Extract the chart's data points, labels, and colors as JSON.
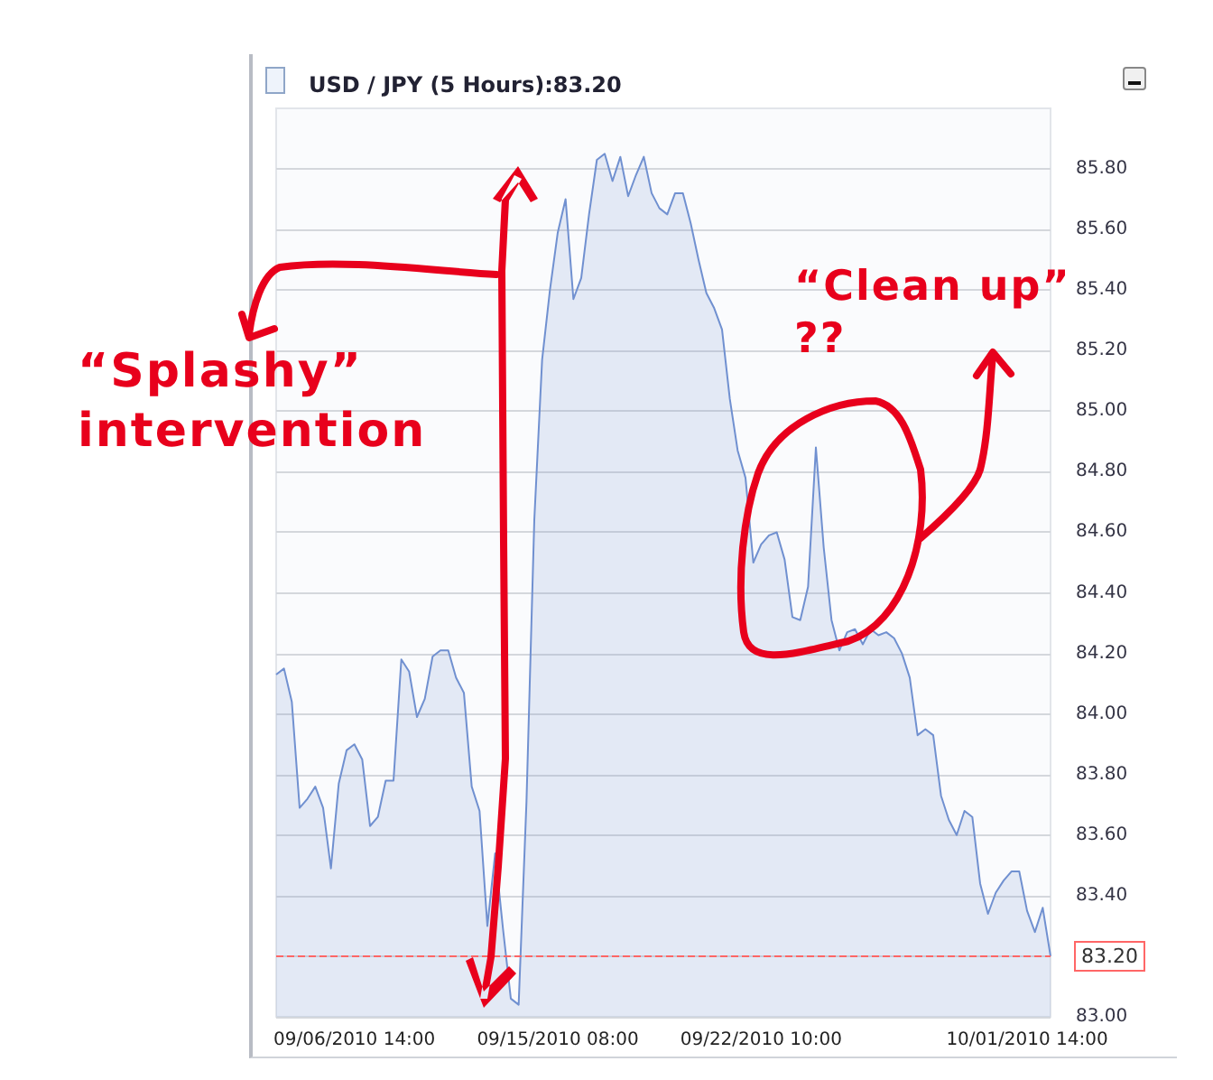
{
  "chart_data": {
    "type": "area",
    "title": "USD / JPY (5 Hours):83.20",
    "categories": [
      null,
      null,
      null,
      null,
      null,
      null,
      null,
      null,
      null,
      null,
      "09/06/2010 14:00",
      null,
      null,
      null,
      null,
      null,
      null,
      null,
      null,
      null,
      null,
      null,
      null,
      null,
      null,
      null,
      null,
      null,
      null,
      null,
      null,
      null,
      null,
      null,
      null,
      null,
      "09/15/2010 08:00",
      null,
      null,
      null,
      null,
      null,
      null,
      null,
      null,
      null,
      null,
      null,
      null,
      null,
      null,
      null,
      null,
      null,
      null,
      null,
      null,
      null,
      null,
      null,
      null,
      null,
      "09/22/2010 10:00",
      null,
      null,
      null,
      null,
      null,
      null,
      null,
      null,
      null,
      null,
      null,
      null,
      null,
      null,
      null,
      null,
      null,
      null,
      null,
      null,
      null,
      null,
      null,
      null,
      null,
      null,
      null,
      null,
      null,
      null,
      null,
      null,
      null,
      "10/01/2010 14:00",
      null,
      null,
      null
    ],
    "series": [
      {
        "color": "#7090d0",
        "values": [
          84.13,
          84.15,
          84.04,
          83.69,
          83.72,
          83.76,
          83.69,
          83.49,
          83.77,
          83.88,
          83.9,
          83.85,
          83.63,
          83.66,
          83.78,
          83.78,
          84.18,
          84.14,
          83.99,
          84.05,
          84.19,
          84.21,
          84.21,
          84.12,
          84.07,
          83.76,
          83.68,
          83.3,
          83.54,
          83.29,
          83.06,
          83.04,
          83.71,
          84.64,
          85.17,
          85.4,
          85.59,
          85.7,
          85.37,
          85.44,
          85.65,
          85.83,
          85.85,
          85.76,
          85.84,
          85.71,
          85.78,
          85.84,
          85.72,
          85.67,
          85.65,
          85.72,
          85.72,
          85.62,
          85.5,
          85.39,
          85.34,
          85.27,
          85.04,
          84.87,
          84.78,
          84.5,
          84.56,
          84.59,
          84.6,
          84.51,
          84.32,
          84.31,
          84.42,
          84.88,
          84.55,
          84.31,
          84.21,
          84.27,
          84.28,
          84.23,
          84.28,
          84.26,
          84.27,
          84.25,
          84.2,
          84.12,
          83.93,
          83.95,
          83.93,
          83.73,
          83.65,
          83.6,
          83.68,
          83.66,
          83.44,
          83.34,
          83.41,
          83.45,
          83.48,
          83.48,
          83.35,
          83.28,
          83.36,
          83.2
        ]
      }
    ],
    "ylim": [
      83,
      86
    ],
    "yticks": [
      {
        "value": 83,
        "label": "83.00"
      },
      {
        "value": 83.2,
        "label": null
      },
      {
        "value": 83.4,
        "label": "83.40"
      },
      {
        "value": 83.6,
        "label": "83.60"
      },
      {
        "value": 83.8,
        "label": "83.80"
      },
      {
        "value": 84,
        "label": "84.00"
      },
      {
        "value": 84.2,
        "label": "84.20"
      },
      {
        "value": 84.4,
        "label": "84.40"
      },
      {
        "value": 84.6,
        "label": "84.60"
      },
      {
        "value": 84.8,
        "label": "84.80"
      },
      {
        "value": 85,
        "label": "85.00"
      },
      {
        "value": 85.2,
        "label": "85.20"
      },
      {
        "value": 85.4,
        "label": "85.40"
      },
      {
        "value": 85.6,
        "label": "85.60"
      },
      {
        "value": 85.8,
        "label": "85.80"
      }
    ],
    "grid": "y",
    "marker": "none",
    "ref_lines": [
      {
        "axis": "y",
        "value": 83.2,
        "label": "83.20",
        "color": "#ff6666",
        "line_style": "dashed"
      }
    ],
    "annotations": [
      "“Splashy” intervention",
      "“Clean up” ??"
    ]
  }
}
